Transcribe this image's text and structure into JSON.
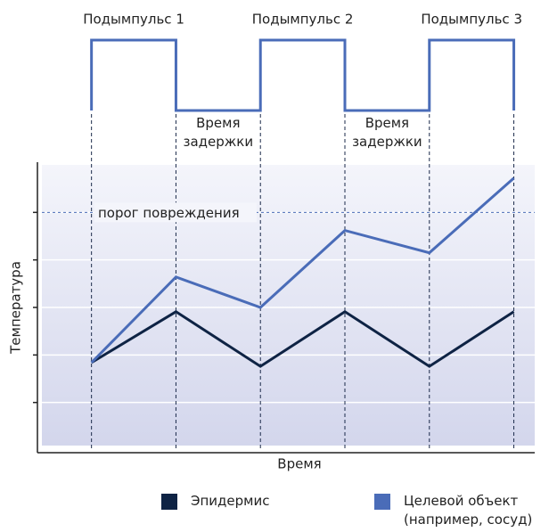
{
  "chart_data": {
    "type": "line",
    "x": [
      0,
      1,
      2,
      3,
      4,
      5
    ],
    "xlim": [
      -0.64,
      5.3
    ],
    "ylim": [
      0,
      6
    ],
    "yticks": [
      1,
      2,
      3,
      4,
      5
    ],
    "grid": true,
    "xlabel": "Время",
    "ylabel": "Температура",
    "series": [
      {
        "name": "Эпидермис",
        "color": "#0e2344",
        "values": [
          1.84,
          2.91,
          1.76,
          2.91,
          1.76,
          2.91
        ]
      },
      {
        "name": "Целевой объект\n(например, сосуд)",
        "color": "#4a6cb8",
        "values": [
          1.84,
          3.64,
          3.0,
          4.62,
          4.15,
          5.72
        ]
      }
    ],
    "threshold": {
      "value": 5,
      "label": "порог повреждения"
    },
    "pulses": [
      "Подымпульс 1",
      "Подымпульс 2",
      "Подымпульс 3"
    ],
    "delays": [
      "Время\nзадержки",
      "Время\nзадержки"
    ]
  }
}
